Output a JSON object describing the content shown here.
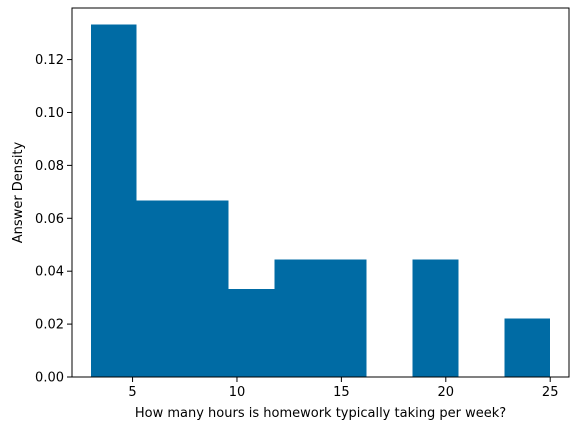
{
  "chart_data": {
    "type": "bar",
    "title": "",
    "xlabel": "How many hours is homework typically taking per week?",
    "ylabel": "Answer Density",
    "bar_color": "#006BA4",
    "xlim": [
      2.1,
      25.9
    ],
    "ylim": [
      0,
      0.1395
    ],
    "x_ticks": [
      5,
      10,
      15,
      20,
      25
    ],
    "y_ticks": [
      0.0,
      0.02,
      0.04,
      0.06,
      0.08,
      0.1,
      0.12
    ],
    "y_tick_labels": [
      "0.00",
      "0.02",
      "0.04",
      "0.06",
      "0.08",
      "0.10",
      "0.12"
    ],
    "bins": [
      {
        "x0": 3.0,
        "x1": 5.2,
        "density": 0.1333
      },
      {
        "x0": 5.2,
        "x1": 7.4,
        "density": 0.0667
      },
      {
        "x0": 7.4,
        "x1": 9.6,
        "density": 0.0667
      },
      {
        "x0": 9.6,
        "x1": 11.8,
        "density": 0.0333
      },
      {
        "x0": 11.8,
        "x1": 14.0,
        "density": 0.0444
      },
      {
        "x0": 14.0,
        "x1": 16.2,
        "density": 0.0444
      },
      {
        "x0": 16.2,
        "x1": 18.4,
        "density": 0.0
      },
      {
        "x0": 18.4,
        "x1": 20.6,
        "density": 0.0444
      },
      {
        "x0": 20.6,
        "x1": 22.8,
        "density": 0.0
      },
      {
        "x0": 22.8,
        "x1": 25.0,
        "density": 0.0222
      }
    ],
    "grid": false,
    "legend": "none"
  }
}
